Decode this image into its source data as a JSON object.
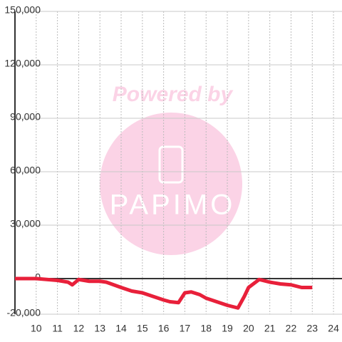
{
  "chart_data": {
    "type": "line",
    "watermark": {
      "top": "Powered by",
      "logo": "PAPIMO"
    },
    "x": [
      9,
      10,
      10.5,
      11,
      11.5,
      11.7,
      12,
      12.5,
      13,
      13.3,
      14,
      14.5,
      15,
      15.5,
      16,
      16.3,
      16.7,
      17,
      17.3,
      17.7,
      18,
      18.5,
      19,
      19.5,
      19.8,
      20,
      20.5,
      21,
      21.5,
      22,
      22.5,
      23
    ],
    "series": [
      {
        "color": "#e8203a",
        "values": [
          0,
          0,
          -500,
          -1000,
          -2000,
          -3500,
          -500,
          -1500,
          -1500,
          -2000,
          -5000,
          -7000,
          -8000,
          -10000,
          -12000,
          -13000,
          -13500,
          -8000,
          -7500,
          -9000,
          -11000,
          -13000,
          -15000,
          -16500,
          -10000,
          -5000,
          -500,
          -2000,
          -3000,
          -3500,
          -5000,
          -5000
        ]
      }
    ],
    "xlim": [
      9,
      24.4
    ],
    "xticks": [
      10,
      11,
      12,
      13,
      14,
      15,
      16,
      17,
      18,
      19,
      20,
      21,
      22,
      23,
      24
    ],
    "ylim": [
      -20000,
      150000
    ],
    "yticks": [
      {
        "value": -20000,
        "label": "-20,000"
      },
      0,
      {
        "value": 30000,
        "label": "30,000"
      },
      {
        "value": 60000,
        "label": "60,000"
      },
      {
        "value": 90000,
        "label": "90,000"
      },
      {
        "value": 120000,
        "label": "120,000"
      },
      {
        "value": 150000,
        "label": "150,000"
      }
    ],
    "grid": true
  }
}
